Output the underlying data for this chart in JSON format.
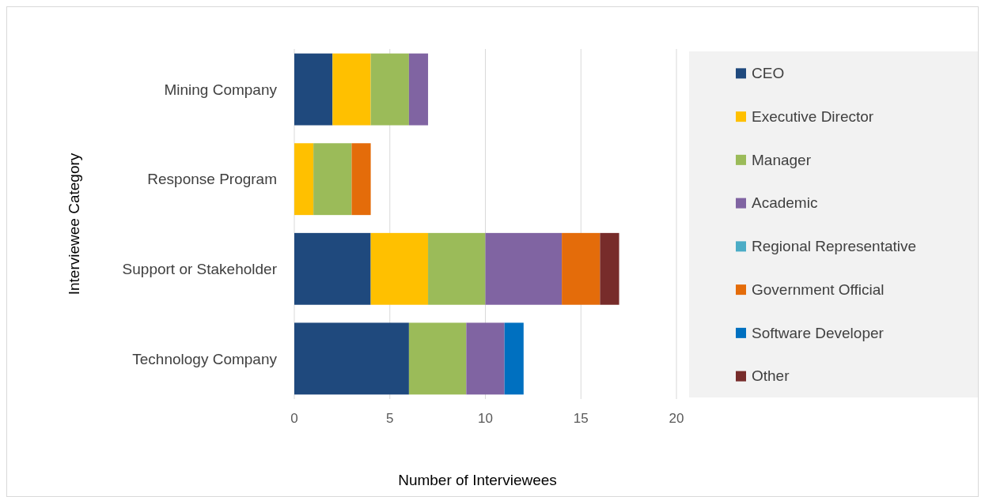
{
  "chart_data": {
    "type": "bar",
    "orientation": "horizontal",
    "stacked": true,
    "xlabel": "Number of Interviewees",
    "ylabel": "Interviewee Category",
    "categories": [
      "Mining Company",
      "Response Program",
      "Support or Stakeholder",
      "Technology Company"
    ],
    "series": [
      {
        "name": "CEO",
        "color": "#1f497d",
        "values": [
          2,
          0,
          4,
          6
        ]
      },
      {
        "name": "Executive Director",
        "color": "#ffc000",
        "values": [
          2,
          1,
          3,
          0
        ]
      },
      {
        "name": "Manager",
        "color": "#9bbb59",
        "values": [
          2,
          2,
          3,
          3
        ]
      },
      {
        "name": "Academic",
        "color": "#8064a2",
        "values": [
          1,
          0,
          4,
          2
        ]
      },
      {
        "name": "Regional Representative",
        "color": "#4bacc6",
        "values": [
          0,
          0,
          0,
          0
        ]
      },
      {
        "name": "Government Official",
        "color": "#e46c0a",
        "values": [
          0,
          1,
          2,
          0
        ]
      },
      {
        "name": "Software Developer",
        "color": "#0070c0",
        "values": [
          0,
          0,
          0,
          1
        ]
      },
      {
        "name": "Other",
        "color": "#772c2a",
        "values": [
          0,
          0,
          1,
          0
        ]
      }
    ],
    "xlim": [
      0,
      20
    ],
    "xticks": [
      0,
      5,
      10,
      15,
      20
    ],
    "grid": "x",
    "legend": "right"
  }
}
